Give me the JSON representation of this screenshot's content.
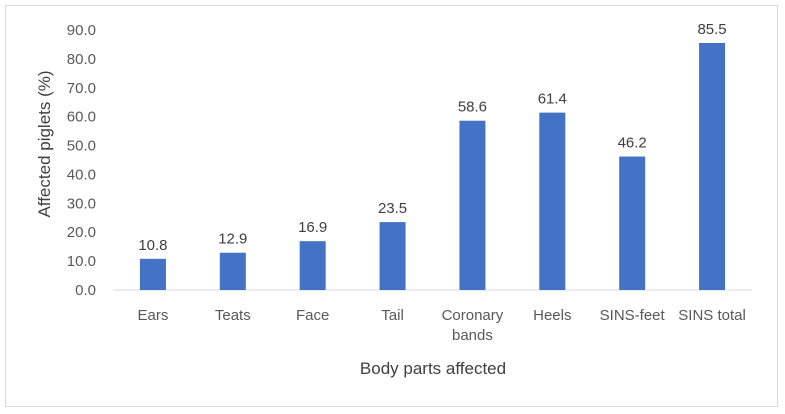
{
  "chart_data": {
    "type": "bar",
    "title": "",
    "xlabel": "Body parts affected",
    "ylabel": "Affected piglets (%)",
    "ylim": [
      0,
      90
    ],
    "ytick_step": 10,
    "ytick_labels": [
      "0.0",
      "10.0",
      "20.0",
      "30.0",
      "40.0",
      "50.0",
      "60.0",
      "70.0",
      "80.0",
      "90.0"
    ],
    "categories": [
      [
        "Ears"
      ],
      [
        "Teats"
      ],
      [
        "Face"
      ],
      [
        "Tail"
      ],
      [
        "Coronary",
        "bands"
      ],
      [
        "Heels"
      ],
      [
        "SINS-feet"
      ],
      [
        "SINS total"
      ]
    ],
    "values": [
      10.8,
      12.9,
      16.9,
      23.5,
      58.6,
      61.4,
      46.2,
      85.5
    ],
    "data_labels": [
      "10.8",
      "12.9",
      "16.9",
      "23.5",
      "58.6",
      "61.4",
      "46.2",
      "85.5"
    ],
    "bar_color": "#4472c4",
    "grid": false,
    "legend": "none"
  }
}
